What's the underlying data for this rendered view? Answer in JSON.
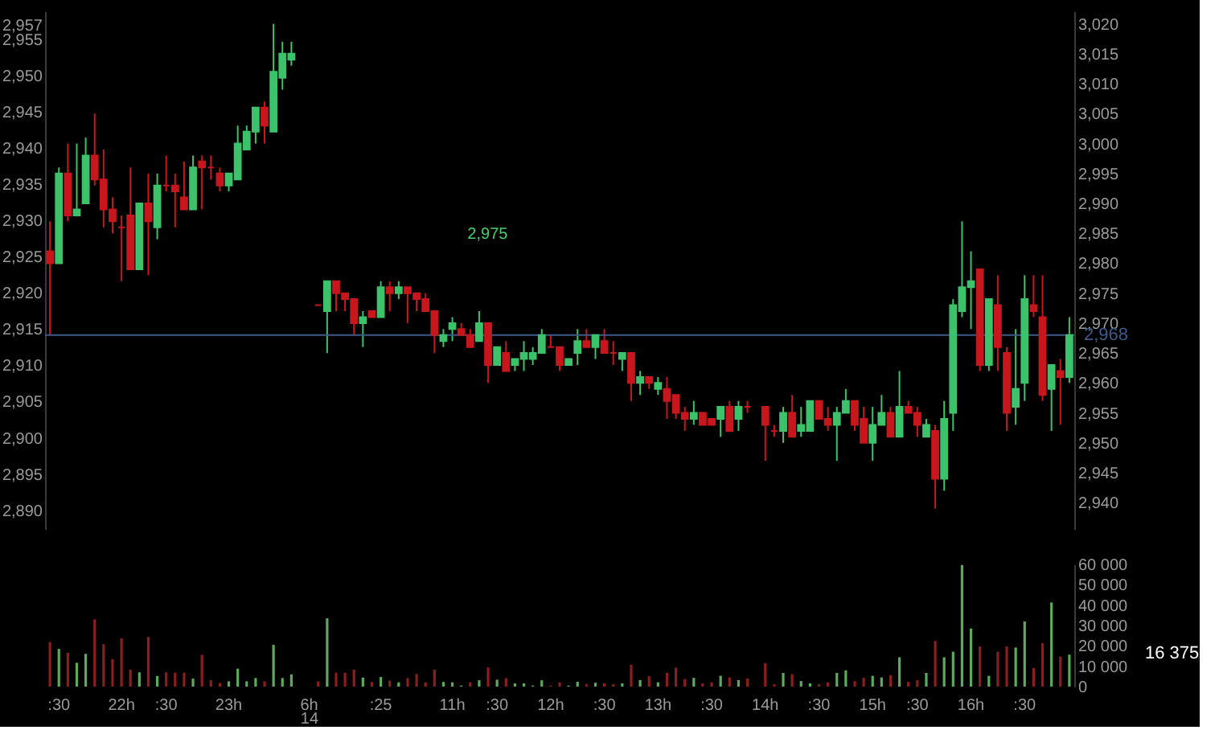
{
  "chart_data": [
    {
      "type": "candlestick",
      "tick_labels": "y",
      "categories": [
        null,
        null,
        null,
        null,
        null,
        null,
        null,
        null,
        null,
        null,
        null,
        null,
        null,
        null,
        null,
        null,
        null,
        null,
        null,
        null,
        null,
        null,
        null,
        null,
        null,
        null,
        null,
        null,
        null,
        null,
        null,
        null,
        null,
        null,
        null,
        null,
        null,
        null,
        null,
        null,
        null,
        null,
        null,
        null,
        null,
        null,
        null,
        null,
        null,
        null,
        null,
        null,
        null,
        null,
        null,
        null,
        null,
        null,
        null,
        null,
        null,
        null,
        null,
        null,
        null,
        null,
        null,
        null,
        null,
        null,
        null,
        null,
        null,
        null,
        null,
        null,
        null,
        null,
        null,
        null,
        null,
        null,
        null,
        null,
        null,
        null,
        null,
        null,
        null,
        null,
        null,
        null,
        null,
        null,
        null,
        null,
        null,
        null,
        null,
        null,
        null,
        null,
        null,
        null,
        null,
        null,
        null,
        null,
        null,
        null,
        null,
        null,
        null,
        null,
        null
      ],
      "ohlc": [
        [
          2982,
          2987,
          2968,
          2980
        ],
        [
          2980,
          2996,
          2980,
          2995
        ],
        [
          2995,
          3000,
          2987,
          2988
        ],
        [
          2988,
          3000,
          2988,
          2989
        ],
        [
          2990,
          3001,
          2990,
          2998
        ],
        [
          2998,
          3005,
          2993,
          2994
        ],
        [
          2994,
          2999,
          2986,
          2989
        ],
        [
          2989,
          2991,
          2985,
          2987
        ],
        [
          2986,
          2988,
          2977,
          2986
        ],
        [
          2988,
          2996,
          2979,
          2979
        ],
        [
          2979,
          2990,
          2979,
          2990
        ],
        [
          2990,
          2995,
          2978,
          2987
        ],
        [
          2986,
          2995,
          2984,
          2993
        ],
        [
          2993,
          2998,
          2992,
          2993
        ],
        [
          2993,
          2995,
          2986,
          2992
        ],
        [
          2991,
          2997,
          2989,
          2989
        ],
        [
          2989,
          2998,
          2989,
          2996
        ],
        [
          2997,
          2998,
          2989,
          2996
        ],
        [
          2996,
          2998,
          2994,
          2996
        ],
        [
          2995,
          2996,
          2992,
          2993
        ],
        [
          2993,
          2995,
          2992,
          2995
        ],
        [
          2994,
          3003,
          2994,
          3000
        ],
        [
          2999,
          3003,
          2999,
          3002
        ],
        [
          3002,
          3006,
          3000,
          3006
        ],
        [
          3006,
          3007,
          3000,
          3003
        ],
        [
          3002,
          3020,
          3002,
          3012
        ],
        [
          3011,
          3017,
          3009,
          3015
        ],
        [
          3014,
          3017,
          3013,
          3015
        ],
        null,
        null,
        [
          2973,
          2973,
          2973,
          2973
        ],
        [
          2972,
          2977,
          2965,
          2977
        ],
        [
          2977,
          2977,
          2972,
          2975
        ],
        [
          2975,
          2975,
          2972,
          2974
        ],
        [
          2974,
          2974,
          2968,
          2970
        ],
        [
          2970,
          2972,
          2966,
          2971
        ],
        [
          2972,
          2972,
          2971,
          2971
        ],
        [
          2971,
          2977,
          2971,
          2976
        ],
        [
          2976,
          2977,
          2972,
          2975
        ],
        [
          2975,
          2977,
          2974,
          2976
        ],
        [
          2976,
          2976,
          2970,
          2975
        ],
        [
          2975,
          2975,
          2972,
          2974
        ],
        [
          2974,
          2975,
          2972,
          2972
        ],
        [
          2972,
          2972,
          2965,
          2968
        ],
        [
          2967,
          2969,
          2966,
          2968
        ],
        [
          2969,
          2971,
          2967,
          2970
        ],
        [
          2969,
          2970,
          2968,
          2968
        ],
        [
          2968,
          2969,
          2966,
          2966
        ],
        [
          2967,
          2972,
          2967,
          2970
        ],
        [
          2970,
          2970,
          2960,
          2963
        ],
        [
          2963,
          2966,
          2963,
          2966
        ],
        [
          2965,
          2967,
          2962,
          2962
        ],
        [
          2963,
          2964,
          2962,
          2964
        ],
        [
          2964,
          2967,
          2962,
          2965
        ],
        [
          2964,
          2966,
          2963,
          2965
        ],
        [
          2965,
          2969,
          2965,
          2968
        ],
        [
          2966,
          2968,
          2966,
          2966
        ],
        [
          2966,
          2966,
          2962,
          2963
        ],
        [
          2963,
          2964,
          2963,
          2964
        ],
        [
          2965,
          2969,
          2963,
          2967
        ],
        [
          2967,
          2969,
          2966,
          2966
        ],
        [
          2966,
          2968,
          2964,
          2968
        ],
        [
          2967,
          2969,
          2965,
          2965
        ],
        [
          2965,
          2967,
          2963,
          2965
        ],
        [
          2964,
          2965,
          2962,
          2965
        ],
        [
          2965,
          2965,
          2957,
          2960
        ],
        [
          2960,
          2962,
          2958,
          2961
        ],
        [
          2961,
          2961,
          2959,
          2960
        ],
        [
          2959,
          2961,
          2958,
          2960
        ],
        [
          2959,
          2961,
          2954,
          2957
        ],
        [
          2958,
          2958,
          2954,
          2955
        ],
        [
          2955,
          2956,
          2952,
          2954
        ],
        [
          2954,
          2957,
          2953,
          2955
        ],
        [
          2955,
          2955,
          2953,
          2953
        ],
        [
          2954,
          2954,
          2953,
          2953
        ],
        [
          2954,
          2956,
          2951,
          2956
        ],
        [
          2956,
          2957,
          2952,
          2952
        ],
        [
          2954,
          2957,
          2952,
          2956
        ],
        [
          2956,
          2957,
          2955,
          2956
        ],
        null,
        [
          2956,
          2956,
          2947,
          2953
        ],
        [
          2952,
          2953,
          2951,
          2952
        ],
        [
          2952,
          2956,
          2950,
          2955
        ],
        [
          2955,
          2958,
          2951,
          2951
        ],
        [
          2952,
          2956,
          2951,
          2953
        ],
        [
          2952,
          2957,
          2952,
          2957
        ],
        [
          2957,
          2957,
          2954,
          2954
        ],
        [
          2954,
          2956,
          2952,
          2953
        ],
        [
          2953,
          2956,
          2947,
          2955
        ],
        [
          2955,
          2959,
          2955,
          2957
        ],
        [
          2957,
          2957,
          2952,
          2953
        ],
        [
          2954,
          2956,
          2950,
          2950
        ],
        [
          2950,
          2956,
          2947,
          2953
        ],
        [
          2953,
          2958,
          2953,
          2955
        ],
        [
          2955,
          2956,
          2951,
          2951
        ],
        [
          2951,
          2962,
          2951,
          2956
        ],
        [
          2956,
          2957,
          2955,
          2955
        ],
        [
          2955,
          2956,
          2951,
          2953
        ],
        [
          2951,
          2954,
          2951,
          2953
        ],
        [
          2952,
          2953,
          2939,
          2944
        ],
        [
          2944,
          2957,
          2942,
          2954
        ],
        [
          2955,
          2974,
          2952,
          2973
        ],
        [
          2972,
          2987,
          2971,
          2976
        ],
        [
          2976,
          2982,
          2969,
          2977
        ],
        [
          2979,
          2979,
          2962,
          2963
        ],
        [
          2963,
          2974,
          2962,
          2974
        ],
        [
          2973,
          2978,
          2962,
          2966
        ],
        [
          2965,
          2966,
          2952,
          2955
        ],
        [
          2956,
          2969,
          2953,
          2959
        ],
        [
          2960,
          2978,
          2957,
          2974
        ],
        [
          2973,
          2978,
          2971,
          2972
        ],
        [
          2971,
          2978,
          2957,
          2958
        ],
        [
          2959,
          2963,
          2952,
          2963
        ],
        [
          2962,
          2964,
          2953,
          2961
        ],
        [
          2961,
          2971,
          2960,
          2968
        ]
      ],
      "colors": [
        "#c8161d",
        "#3cc26a",
        "#c8161d",
        "#3cc26a",
        "#3cc26a",
        "#c8161d",
        "#c8161d",
        "#c8161d",
        "#c8161d",
        "#c8161d",
        "#3cc26a",
        "#c8161d",
        "#3cc26a",
        "#c8161d",
        "#c8161d",
        "#c8161d",
        "#3cc26a",
        "#c8161d",
        "#c8161d",
        "#c8161d",
        "#3cc26a",
        "#3cc26a",
        "#3cc26a",
        "#3cc26a",
        "#c8161d",
        "#3cc26a",
        "#3cc26a",
        "#3cc26a",
        null,
        null,
        "#c8161d",
        "#3cc26a",
        "#c8161d",
        "#c8161d",
        "#c8161d",
        "#3cc26a",
        "#c8161d",
        "#3cc26a",
        "#c8161d",
        "#3cc26a",
        "#c8161d",
        "#c8161d",
        "#c8161d",
        "#c8161d",
        "#3cc26a",
        "#3cc26a",
        "#c8161d",
        "#c8161d",
        "#3cc26a",
        "#c8161d",
        "#3cc26a",
        "#c8161d",
        "#3cc26a",
        "#3cc26a",
        "#3cc26a",
        "#3cc26a",
        "#c8161d",
        "#c8161d",
        "#3cc26a",
        "#3cc26a",
        "#c8161d",
        "#3cc26a",
        "#c8161d",
        "#c8161d",
        "#3cc26a",
        "#c8161d",
        "#3cc26a",
        "#c8161d",
        "#3cc26a",
        "#c8161d",
        "#c8161d",
        "#c8161d",
        "#3cc26a",
        "#c8161d",
        "#c8161d",
        "#3cc26a",
        "#c8161d",
        "#3cc26a",
        "#c8161d",
        null,
        "#c8161d",
        "#c8161d",
        "#3cc26a",
        "#c8161d",
        "#3cc26a",
        "#3cc26a",
        "#c8161d",
        "#c8161d",
        "#3cc26a",
        "#3cc26a",
        "#c8161d",
        "#c8161d",
        "#3cc26a",
        "#3cc26a",
        "#c8161d",
        "#3cc26a",
        "#c8161d",
        "#c8161d",
        "#3cc26a",
        "#c8161d",
        "#3cc26a",
        "#3cc26a",
        "#3cc26a",
        "#3cc26a",
        "#c8161d",
        "#3cc26a",
        "#c8161d",
        "#c8161d",
        "#3cc26a",
        "#3cc26a",
        "#c8161d",
        "#c8161d",
        "#3cc26a",
        "#c8161d",
        "#3cc26a"
      ],
      "y2lim": [
        2887.4,
        2958.9
      ],
      "y2ticks": [
        {
          "value": 2957,
          "label": "2,957"
        },
        {
          "value": 2955,
          "label": "2,955"
        },
        {
          "value": 2950,
          "label": "2,950"
        },
        {
          "value": 2945,
          "label": "2,945"
        },
        {
          "value": 2940,
          "label": "2,940"
        },
        {
          "value": 2935,
          "label": "2,935"
        },
        {
          "value": 2930,
          "label": "2,930"
        },
        {
          "value": 2925,
          "label": "2,925"
        },
        {
          "value": 2920,
          "label": "2,920"
        },
        {
          "value": 2915,
          "label": "2,915"
        },
        {
          "value": 2910,
          "label": "2,910"
        },
        {
          "value": 2905,
          "label": "2,905"
        },
        {
          "value": 2900,
          "label": "2,900"
        },
        {
          "value": 2895,
          "label": "2,895"
        },
        {
          "value": 2890,
          "label": "2,890"
        }
      ],
      "ylim": [
        2935.6,
        3022.1
      ],
      "yticks": [
        {
          "value": 3020,
          "label": "3,020"
        },
        {
          "value": 3015,
          "label": "3,015"
        },
        {
          "value": 3010,
          "label": "3,010"
        },
        {
          "value": 3005,
          "label": "3,005"
        },
        {
          "value": 3000,
          "label": "3,000"
        },
        {
          "value": 2995,
          "label": "2,995"
        },
        {
          "value": 2990,
          "label": "2,990"
        },
        {
          "value": 2985,
          "label": "2,985"
        },
        {
          "value": 2980,
          "label": "2,980"
        },
        {
          "value": 2975,
          "label": "2,975"
        },
        {
          "value": 2970,
          "label": "2,970"
        },
        {
          "value": 2965,
          "label": "2,965"
        },
        {
          "value": 2960,
          "label": "2,960"
        },
        {
          "value": 2955,
          "label": "2,955"
        },
        {
          "value": 2950,
          "label": "2,950"
        },
        {
          "value": 2945,
          "label": "2,945"
        },
        {
          "value": 2940,
          "label": "2,940"
        }
      ],
      "ref_lines": [
        {
          "axis": "y",
          "value": 2968,
          "label": "2,968",
          "color": "#3d5a8a",
          "line_style": "solid"
        }
      ],
      "annotations": [
        "2,975"
      ]
    },
    {
      "type": "bar",
      "categories": [
        null,
        ":30",
        null,
        null,
        null,
        null,
        null,
        null,
        "22h",
        null,
        null,
        null,
        null,
        ":30",
        null,
        null,
        null,
        null,
        null,
        null,
        "23h",
        null,
        null,
        null,
        null,
        null,
        null,
        null,
        null,
        "6h",
        null,
        null,
        null,
        null,
        null,
        null,
        null,
        ":25",
        null,
        null,
        null,
        null,
        null,
        null,
        null,
        "11h",
        null,
        null,
        null,
        null,
        ":30",
        null,
        null,
        null,
        null,
        null,
        "12h",
        null,
        null,
        null,
        null,
        null,
        ":30",
        null,
        null,
        null,
        null,
        null,
        "13h",
        null,
        null,
        null,
        null,
        null,
        ":30",
        null,
        null,
        null,
        null,
        null,
        "14h",
        null,
        null,
        null,
        null,
        null,
        ":30",
        null,
        null,
        null,
        null,
        null,
        "15h",
        null,
        null,
        null,
        null,
        ":30",
        null,
        null,
        null,
        null,
        null,
        "16h",
        null,
        null,
        null,
        null,
        null,
        ":30",
        null,
        null,
        null,
        null,
        null
      ],
      "values": [
        21800,
        18500,
        16600,
        11700,
        16100,
        33000,
        20800,
        13500,
        23700,
        8300,
        7000,
        24400,
        5200,
        7000,
        6800,
        6800,
        3900,
        15600,
        3100,
        1800,
        2600,
        8800,
        2600,
        4200,
        2600,
        20500,
        4200,
        6000,
        null,
        null,
        2600,
        33500,
        6800,
        6800,
        8300,
        4400,
        2300,
        4700,
        2900,
        2100,
        4200,
        6200,
        2100,
        8300,
        2300,
        2100,
        500,
        2100,
        3100,
        9400,
        3400,
        4200,
        1600,
        1600,
        500,
        3100,
        500,
        2100,
        500,
        2400,
        1100,
        1900,
        1600,
        1100,
        1600,
        10700,
        3200,
        5100,
        2100,
        6700,
        9300,
        3700,
        4300,
        1600,
        2100,
        5300,
        4500,
        3200,
        4000,
        null,
        11500,
        1100,
        6700,
        6100,
        2700,
        1600,
        1100,
        2100,
        6700,
        8000,
        2700,
        4300,
        5300,
        4500,
        5600,
        14400,
        2400,
        3200,
        6700,
        22400,
        14400,
        17100,
        59700,
        28500,
        19700,
        5300,
        17100,
        19700,
        19200,
        32000,
        9100,
        21300,
        41300,
        14700,
        15700
      ],
      "colors": [
        "#8e1e1e",
        "#5da95d",
        "#8e1e1e",
        "#5da95d",
        "#5da95d",
        "#8e1e1e",
        "#8e1e1e",
        "#8e1e1e",
        "#8e1e1e",
        "#8e1e1e",
        "#5da95d",
        "#8e1e1e",
        "#5da95d",
        "#8e1e1e",
        "#8e1e1e",
        "#8e1e1e",
        "#5da95d",
        "#8e1e1e",
        "#8e1e1e",
        "#8e1e1e",
        "#5da95d",
        "#5da95d",
        "#5da95d",
        "#5da95d",
        "#8e1e1e",
        "#5da95d",
        "#5da95d",
        "#5da95d",
        null,
        null,
        "#8e1e1e",
        "#5da95d",
        "#8e1e1e",
        "#8e1e1e",
        "#8e1e1e",
        "#5da95d",
        "#8e1e1e",
        "#5da95d",
        "#8e1e1e",
        "#5da95d",
        "#8e1e1e",
        "#8e1e1e",
        "#8e1e1e",
        "#8e1e1e",
        "#5da95d",
        "#5da95d",
        "#5da95d",
        "#8e1e1e",
        "#5da95d",
        "#8e1e1e",
        "#5da95d",
        "#8e1e1e",
        "#5da95d",
        "#5da95d",
        "#5da95d",
        "#5da95d",
        "#8e1e1e",
        "#8e1e1e",
        "#5da95d",
        "#5da95d",
        "#8e1e1e",
        "#5da95d",
        "#8e1e1e",
        "#8e1e1e",
        "#5da95d",
        "#8e1e1e",
        "#5da95d",
        "#8e1e1e",
        "#5da95d",
        "#8e1e1e",
        "#8e1e1e",
        "#8e1e1e",
        "#5da95d",
        "#8e1e1e",
        "#8e1e1e",
        "#5da95d",
        "#8e1e1e",
        "#5da95d",
        "#8e1e1e",
        null,
        "#8e1e1e",
        "#8e1e1e",
        "#5da95d",
        "#8e1e1e",
        "#5da95d",
        "#5da95d",
        "#8e1e1e",
        "#8e1e1e",
        "#5da95d",
        "#5da95d",
        "#8e1e1e",
        "#8e1e1e",
        "#5da95d",
        "#5da95d",
        "#8e1e1e",
        "#5da95d",
        "#8e1e1e",
        "#8e1e1e",
        "#5da95d",
        "#8e1e1e",
        "#5da95d",
        "#5da95d",
        "#5da95d",
        "#5da95d",
        "#8e1e1e",
        "#5da95d",
        "#8e1e1e",
        "#8e1e1e",
        "#5da95d",
        "#5da95d",
        "#8e1e1e",
        "#8e1e1e",
        "#5da95d",
        "#8e1e1e",
        "#5da95d"
      ],
      "ylim": [
        0,
        60000
      ],
      "yticks": [
        {
          "value": 60000,
          "label": "60 000"
        },
        {
          "value": 50000,
          "label": "50 000"
        },
        {
          "value": 40000,
          "label": "40 000"
        },
        {
          "value": 30000,
          "label": "30 000"
        },
        {
          "value": 20000,
          "label": "20 000"
        },
        {
          "value": 10000,
          "label": "10 000"
        },
        0
      ],
      "annotations": [
        "14",
        "16 375"
      ]
    }
  ]
}
